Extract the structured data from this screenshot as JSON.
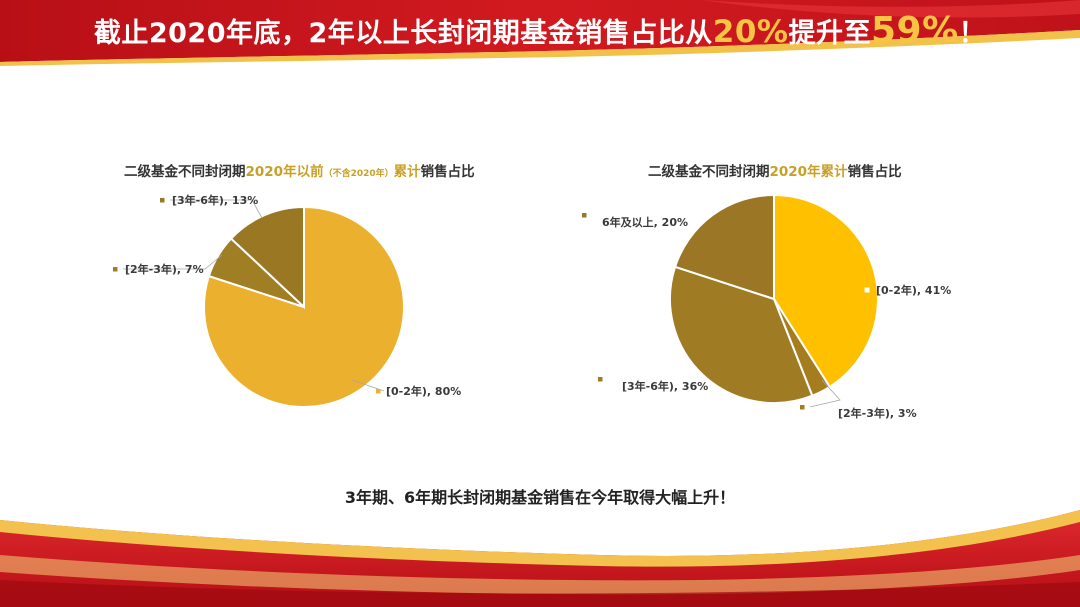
{
  "headline": {
    "part1": "截止2020年底，2年以上长封闭期基金销售占比从",
    "value_from": "20%",
    "part2": "提升至",
    "value_to": "59%",
    "part3": "！"
  },
  "conclusion": "3年期、6年期长封闭期基金销售在今年取得大幅上升！",
  "colors": {
    "banner_red": "#c8161d",
    "gold_accent": "#f7c443"
  },
  "chart_data": [
    {
      "type": "pie",
      "title_parts": {
        "prefix": "二级基金不同封闭期",
        "highlight": "2020年以前",
        "note": "（不含2020年）",
        "highlight2": "累计",
        "suffix": "销售占比"
      },
      "slices": [
        {
          "label": "[0-2年), 80%",
          "category": "[0-2年)",
          "value": 80,
          "color": "#ebb12e"
        },
        {
          "label": "[2年-3年), 7%",
          "category": "[2年-3年)",
          "value": 7,
          "color": "#a07e24"
        },
        {
          "label": "[3年-6年), 13%",
          "category": "[3年-6年)",
          "value": 13,
          "color": "#9a7722"
        }
      ]
    },
    {
      "type": "pie",
      "title_parts": {
        "prefix": "二级基金不同封闭期",
        "highlight": "2020年累计",
        "suffix": "销售占比"
      },
      "slices": [
        {
          "label": "[0-2年), 41%",
          "category": "[0-2年)",
          "value": 41,
          "color": "#ffc000"
        },
        {
          "label": "[2年-3年), 3%",
          "category": "[2年-3年)",
          "value": 3,
          "color": "#a57d1e"
        },
        {
          "label": "[3年-6年), 36%",
          "category": "[3年-6年)",
          "value": 36,
          "color": "#9f7b24"
        },
        {
          "label": "6年及以上, 20%",
          "category": "6年及以上",
          "value": 20,
          "color": "#9b7624"
        }
      ]
    }
  ]
}
